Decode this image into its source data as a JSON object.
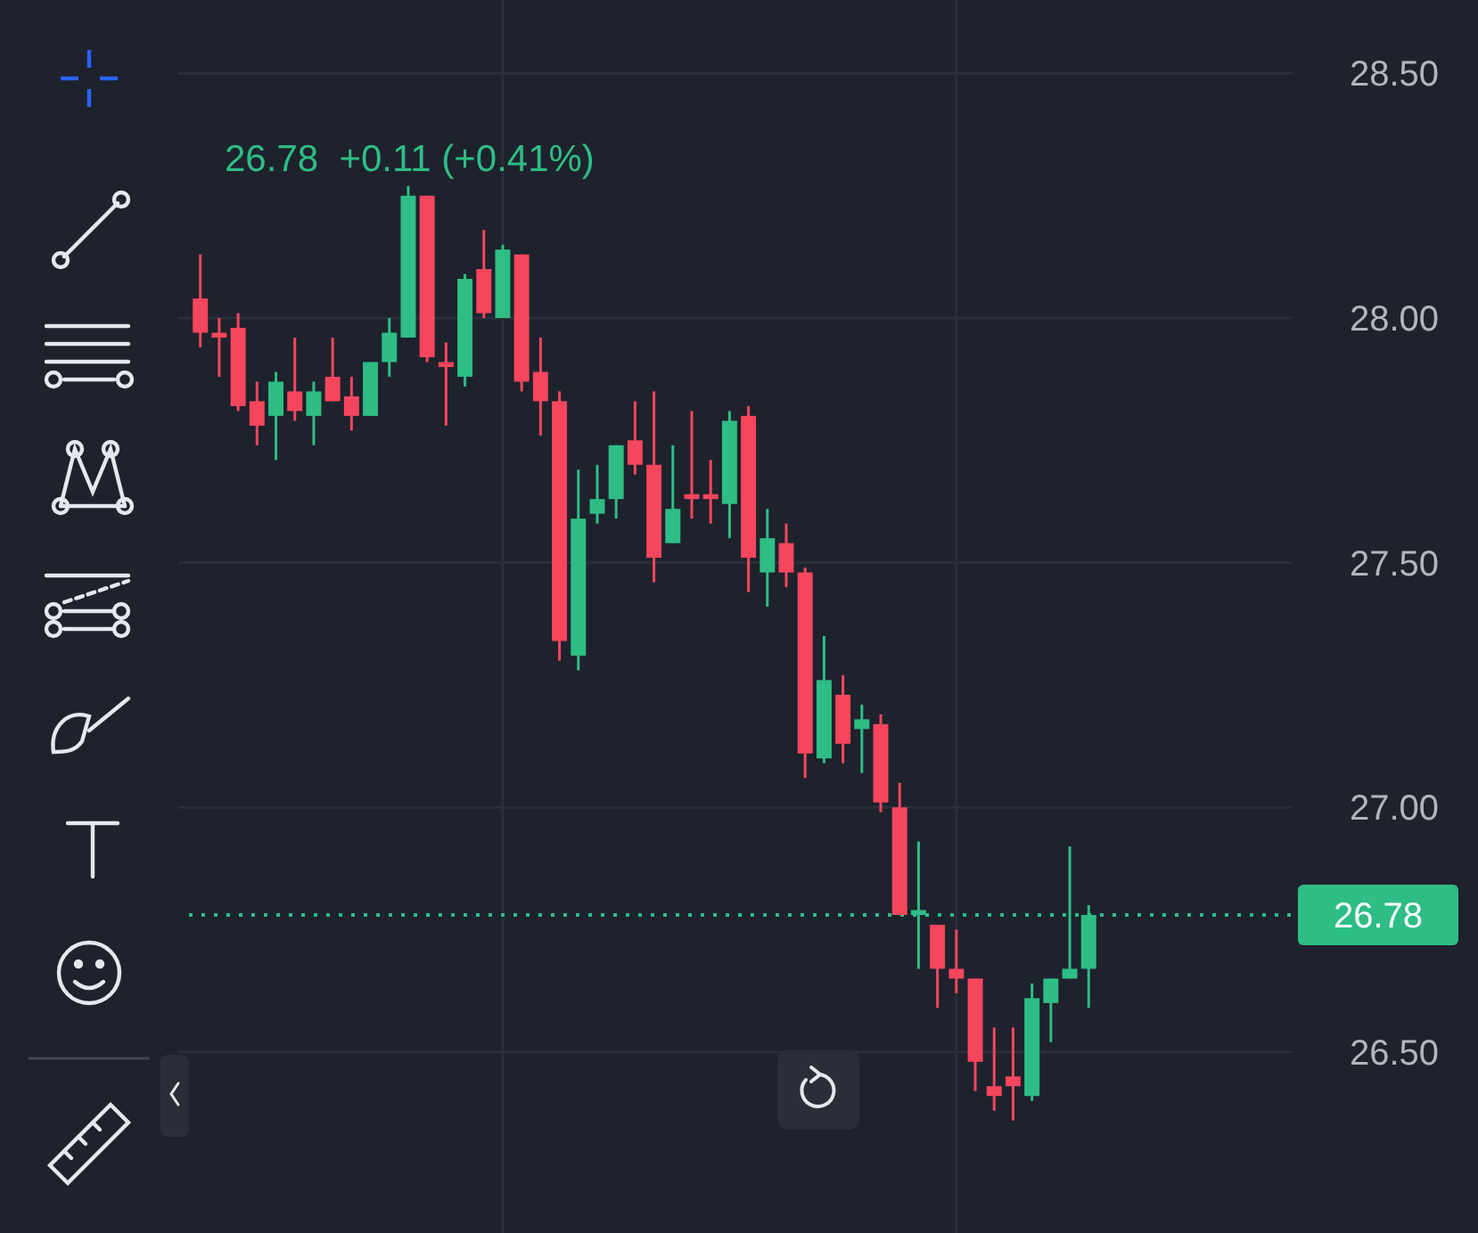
{
  "chart_data": {
    "type": "candlestick",
    "subtitle": "26.78  +0.11 (+0.41%)",
    "categories": [
      null,
      null,
      null,
      null,
      null,
      null,
      null,
      null,
      null,
      null,
      null,
      null,
      null,
      null,
      null,
      null,
      null,
      null,
      null,
      null,
      null,
      null,
      null,
      null,
      null,
      null,
      null,
      null,
      null,
      null,
      null,
      null,
      null,
      null,
      null,
      null,
      null,
      null,
      null,
      null,
      null,
      null,
      null,
      null,
      null,
      null,
      null,
      null,
      null,
      null,
      null,
      null,
      null,
      null,
      null,
      null,
      null,
      null
    ],
    "ohlc": [
      [
        28.04,
        28.13,
        27.94,
        27.97
      ],
      [
        27.97,
        28.0,
        27.88,
        27.96
      ],
      [
        27.98,
        28.01,
        27.81,
        27.82
      ],
      [
        27.83,
        27.87,
        27.74,
        27.78
      ],
      [
        27.8,
        27.89,
        27.71,
        27.87
      ],
      [
        27.85,
        27.96,
        27.79,
        27.81
      ],
      [
        27.8,
        27.87,
        27.74,
        27.85
      ],
      [
        27.88,
        27.96,
        27.83,
        27.83
      ],
      [
        27.84,
        27.88,
        27.77,
        27.8
      ],
      [
        27.8,
        27.91,
        27.8,
        27.91
      ],
      [
        27.91,
        28.0,
        27.88,
        27.97
      ],
      [
        27.96,
        28.27,
        27.96,
        28.25
      ],
      [
        28.25,
        28.25,
        27.91,
        27.92
      ],
      [
        27.91,
        27.95,
        27.78,
        27.9
      ],
      [
        27.88,
        28.09,
        27.86,
        28.08
      ],
      [
        28.1,
        28.18,
        28.0,
        28.01
      ],
      [
        28.0,
        28.15,
        28.0,
        28.14
      ],
      [
        28.13,
        28.13,
        27.85,
        27.87
      ],
      [
        27.89,
        27.96,
        27.76,
        27.83
      ],
      [
        27.83,
        27.85,
        27.3,
        27.34
      ],
      [
        27.31,
        27.69,
        27.28,
        27.59
      ],
      [
        27.6,
        27.7,
        27.58,
        27.63
      ],
      [
        27.63,
        27.74,
        27.59,
        27.74
      ],
      [
        27.75,
        27.83,
        27.68,
        27.7
      ],
      [
        27.7,
        27.85,
        27.46,
        27.51
      ],
      [
        27.54,
        27.74,
        27.54,
        27.61
      ],
      [
        27.64,
        27.81,
        27.59,
        27.63
      ],
      [
        27.64,
        27.71,
        27.58,
        27.63
      ],
      [
        27.62,
        27.81,
        27.55,
        27.79
      ],
      [
        27.8,
        27.82,
        27.44,
        27.51
      ],
      [
        27.48,
        27.61,
        27.41,
        27.55
      ],
      [
        27.54,
        27.58,
        27.45,
        27.48
      ],
      [
        27.48,
        27.49,
        27.06,
        27.11
      ],
      [
        27.1,
        27.35,
        27.09,
        27.26
      ],
      [
        27.23,
        27.27,
        27.09,
        27.13
      ],
      [
        27.16,
        27.21,
        27.07,
        27.18
      ],
      [
        27.17,
        27.19,
        26.99,
        27.01
      ],
      [
        27.0,
        27.05,
        26.78,
        26.78
      ],
      [
        26.78,
        26.93,
        26.67,
        26.79
      ],
      [
        26.76,
        26.76,
        26.59,
        26.67
      ],
      [
        26.67,
        26.75,
        26.62,
        26.65
      ],
      [
        26.65,
        26.65,
        26.42,
        26.48
      ],
      [
        26.43,
        26.55,
        26.38,
        26.41
      ],
      [
        26.45,
        26.55,
        26.36,
        26.43
      ],
      [
        26.41,
        26.64,
        26.4,
        26.61
      ],
      [
        26.6,
        26.65,
        26.52,
        26.65
      ],
      [
        26.65,
        26.92,
        26.65,
        26.67
      ],
      [
        26.67,
        26.8,
        26.59,
        26.78
      ],
      null,
      null,
      null,
      null,
      null,
      null,
      null,
      null,
      null,
      null
    ],
    "ylim": [
      26.13,
      28.65
    ],
    "yticks": [
      {
        "value": 26.5,
        "label": "26.50"
      },
      {
        "value": 27,
        "label": "27.00"
      },
      {
        "value": 27.5,
        "label": "27.50"
      },
      {
        "value": 28,
        "label": "28.00"
      },
      {
        "value": 28.5,
        "label": "28.50"
      }
    ],
    "grid": true,
    "ref_lines": [
      {
        "axis": "y",
        "value": 26.78,
        "label": "26.78",
        "color": "#2ebd85",
        "line_style": "dotted"
      }
    ]
  }
}
